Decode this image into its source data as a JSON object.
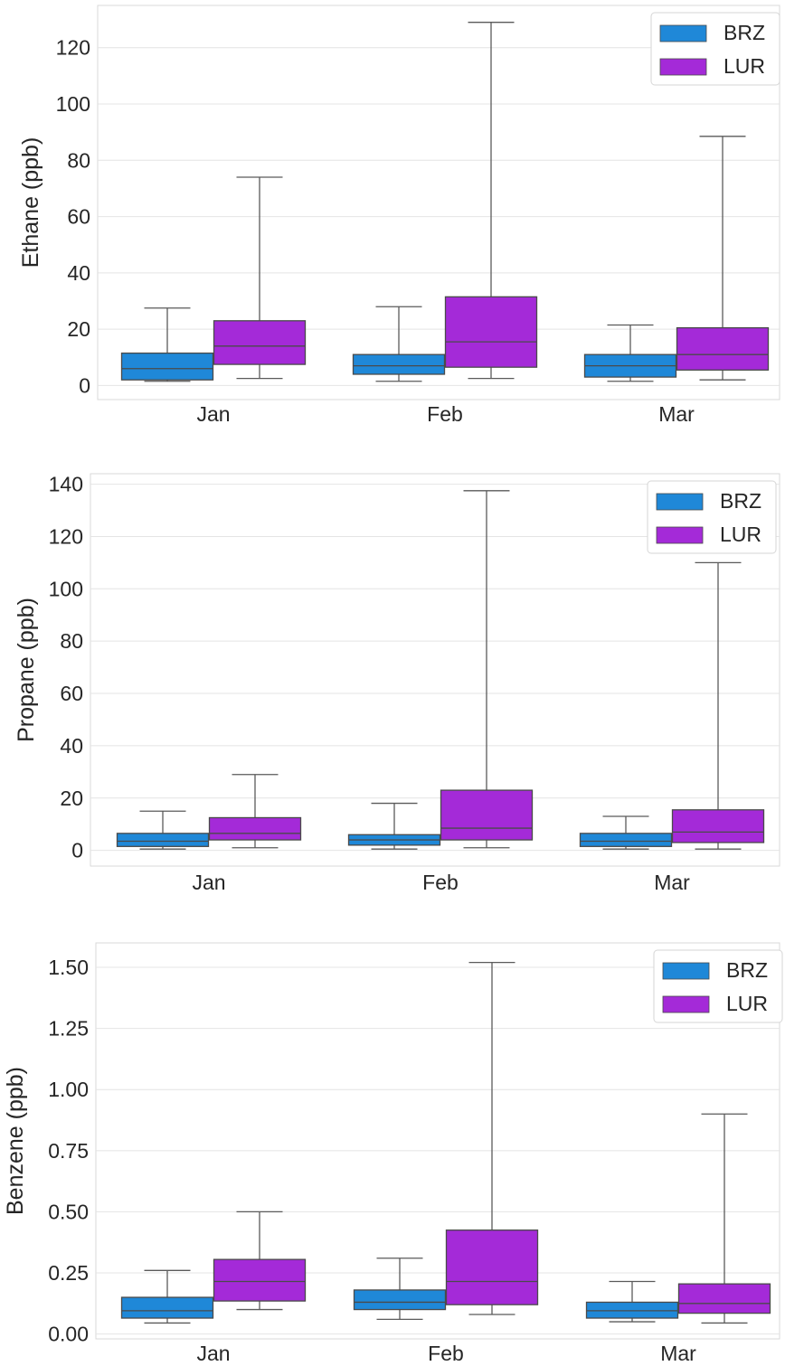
{
  "chart_data": [
    {
      "type": "box",
      "ylabel": "Ethane (ppb)",
      "categories": [
        "Jan",
        "Feb",
        "Mar"
      ],
      "ylim": [
        -5,
        135
      ],
      "yticks": [
        0,
        20,
        40,
        60,
        80,
        100,
        120
      ],
      "ytick_labels": [
        "0",
        "20",
        "40",
        "60",
        "80",
        "100",
        "120"
      ],
      "grid": true,
      "legend": {
        "placement": "top-right",
        "entries": [
          "BRZ",
          "LUR"
        ]
      },
      "series": [
        {
          "name": "BRZ",
          "color": "#1f88d8",
          "boxes": [
            {
              "whislo": 1.5,
              "q1": 2,
              "med": 6,
              "q3": 11.5,
              "whishi": 27.5
            },
            {
              "whislo": 1.5,
              "q1": 4,
              "med": 7,
              "q3": 11,
              "whishi": 28
            },
            {
              "whislo": 1.5,
              "q1": 3,
              "med": 7,
              "q3": 11,
              "whishi": 21.5
            }
          ]
        },
        {
          "name": "LUR",
          "color": "#a42ad8",
          "boxes": [
            {
              "whislo": 2.5,
              "q1": 7.5,
              "med": 14,
              "q3": 23,
              "whishi": 74
            },
            {
              "whislo": 2.5,
              "q1": 6.5,
              "med": 15.5,
              "q3": 31.5,
              "whishi": 129
            },
            {
              "whislo": 2,
              "q1": 5.5,
              "med": 11,
              "q3": 20.5,
              "whishi": 88.5
            }
          ]
        }
      ]
    },
    {
      "type": "box",
      "ylabel": "Propane (ppb)",
      "categories": [
        "Jan",
        "Feb",
        "Mar"
      ],
      "ylim": [
        -6,
        144
      ],
      "yticks": [
        0,
        20,
        40,
        60,
        80,
        100,
        120,
        140
      ],
      "ytick_labels": [
        "0",
        "20",
        "40",
        "60",
        "80",
        "100",
        "120",
        "140"
      ],
      "grid": true,
      "legend": {
        "placement": "top-right",
        "entries": [
          "BRZ",
          "LUR"
        ]
      },
      "series": [
        {
          "name": "BRZ",
          "color": "#1f88d8",
          "boxes": [
            {
              "whislo": 0.5,
              "q1": 1.5,
              "med": 3.5,
              "q3": 6.5,
              "whishi": 15
            },
            {
              "whislo": 0.5,
              "q1": 2,
              "med": 4,
              "q3": 6,
              "whishi": 18
            },
            {
              "whislo": 0.5,
              "q1": 1.5,
              "med": 3.5,
              "q3": 6.5,
              "whishi": 13
            }
          ]
        },
        {
          "name": "LUR",
          "color": "#a42ad8",
          "boxes": [
            {
              "whislo": 1,
              "q1": 4,
              "med": 6.5,
              "q3": 12.5,
              "whishi": 29
            },
            {
              "whislo": 1,
              "q1": 4,
              "med": 8.5,
              "q3": 23,
              "whishi": 137.5
            },
            {
              "whislo": 0.5,
              "q1": 3,
              "med": 7,
              "q3": 15.5,
              "whishi": 110
            }
          ]
        }
      ]
    },
    {
      "type": "box",
      "ylabel": "Benzene (ppb)",
      "categories": [
        "Jan",
        "Feb",
        "Mar"
      ],
      "ylim": [
        -0.02,
        1.6
      ],
      "yticks": [
        0.0,
        0.25,
        0.5,
        0.75,
        1.0,
        1.25,
        1.5
      ],
      "ytick_labels": [
        "0.00",
        "0.25",
        "0.50",
        "0.75",
        "1.00",
        "1.25",
        "1.50"
      ],
      "grid": true,
      "legend": {
        "placement": "top-right",
        "entries": [
          "BRZ",
          "LUR"
        ]
      },
      "series": [
        {
          "name": "BRZ",
          "color": "#1f88d8",
          "boxes": [
            {
              "whislo": 0.045,
              "q1": 0.065,
              "med": 0.095,
              "q3": 0.15,
              "whishi": 0.26
            },
            {
              "whislo": 0.06,
              "q1": 0.1,
              "med": 0.13,
              "q3": 0.18,
              "whishi": 0.31
            },
            {
              "whislo": 0.05,
              "q1": 0.065,
              "med": 0.095,
              "q3": 0.13,
              "whishi": 0.215
            }
          ]
        },
        {
          "name": "LUR",
          "color": "#a42ad8",
          "boxes": [
            {
              "whislo": 0.1,
              "q1": 0.135,
              "med": 0.215,
              "q3": 0.305,
              "whishi": 0.5
            },
            {
              "whislo": 0.08,
              "q1": 0.12,
              "med": 0.215,
              "q3": 0.425,
              "whishi": 1.52
            },
            {
              "whislo": 0.045,
              "q1": 0.085,
              "med": 0.125,
              "q3": 0.205,
              "whishi": 0.9
            }
          ]
        }
      ]
    }
  ]
}
